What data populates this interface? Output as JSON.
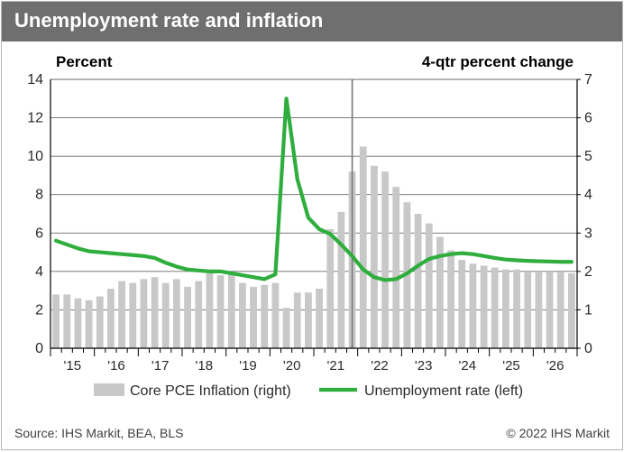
{
  "title": "Unemployment rate and inflation",
  "left_axis_title": "Percent",
  "right_axis_title": "4-qtr percent change",
  "left_axis": {
    "min": 0,
    "max": 14,
    "step": 2
  },
  "right_axis": {
    "min": 0,
    "max": 7,
    "step": 1
  },
  "year_labels": [
    "'15",
    "'16",
    "'17",
    "'18",
    "'19",
    "'20",
    "'21",
    "'22",
    "'23",
    "'24",
    "'25",
    "'26"
  ],
  "forecast_divider_index": 27,
  "colors": {
    "bar": "#c8c8c8",
    "line": "#2fae3e",
    "grid": "#6a6a6a",
    "divider": "#777777",
    "axis": "#000000",
    "title_bg": "#6f6f6f",
    "card_border": "#b7b7b7",
    "bg": "#ffffff"
  },
  "legend": {
    "bar_label": "Core PCE Inflation (right)",
    "line_label": "Unemployment rate (left)"
  },
  "footer_left": "Source: IHS Markit, BEA, BLS",
  "footer_right": "© 2022 IHS Markit",
  "bars_right_scale": [
    1.4,
    1.4,
    1.3,
    1.25,
    1.35,
    1.55,
    1.75,
    1.7,
    1.8,
    1.85,
    1.7,
    1.8,
    1.6,
    1.75,
    1.95,
    1.9,
    1.95,
    1.7,
    1.6,
    1.65,
    1.7,
    1.05,
    1.45,
    1.45,
    1.55,
    3.1,
    3.55,
    4.6,
    5.25,
    4.75,
    4.6,
    4.2,
    3.8,
    3.5,
    3.25,
    2.9,
    2.55,
    2.3,
    2.2,
    2.15,
    2.1,
    2.05,
    2.05,
    2.0,
    2.0,
    2.0,
    1.98,
    1.95
  ],
  "line_left_scale": [
    5.6,
    5.4,
    5.2,
    5.05,
    5.0,
    4.95,
    4.9,
    4.85,
    4.8,
    4.7,
    4.45,
    4.25,
    4.1,
    4.05,
    4.0,
    4.0,
    3.9,
    3.8,
    3.7,
    3.6,
    3.85,
    13.0,
    8.8,
    6.8,
    6.2,
    5.95,
    5.4,
    4.8,
    4.1,
    3.7,
    3.55,
    3.6,
    3.9,
    4.3,
    4.65,
    4.8,
    4.9,
    4.95,
    4.9,
    4.8,
    4.7,
    4.62,
    4.58,
    4.55,
    4.53,
    4.52,
    4.5,
    4.5
  ]
}
